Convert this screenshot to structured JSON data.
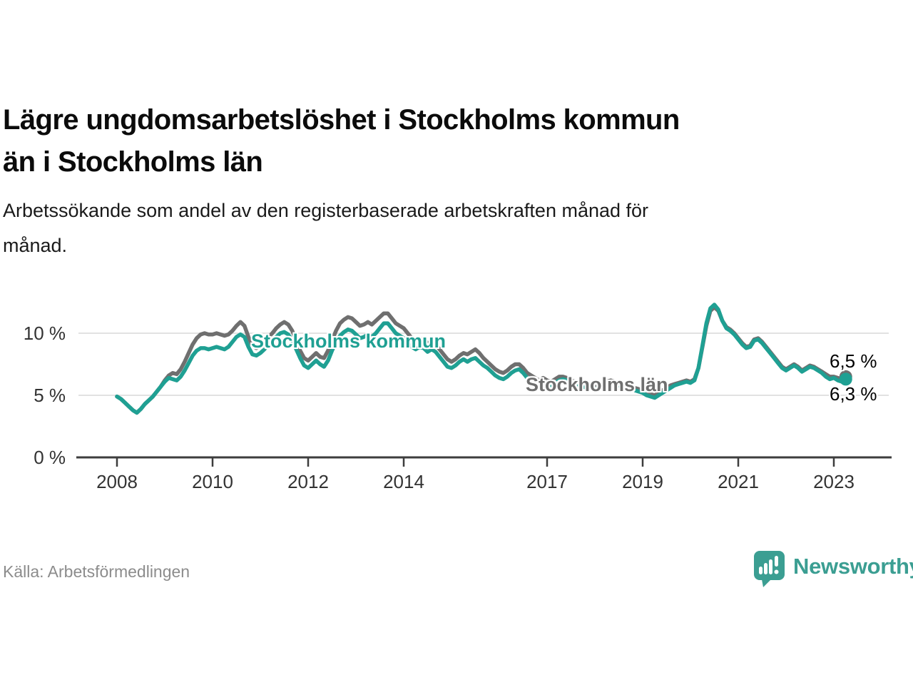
{
  "header": {
    "title": "Lägre ungdomsarbetslöshet i Stockholms kommun än i Stockholms län",
    "title_line1": "Lägre ungdomsarbetslöshet i Stockholms kommun",
    "title_line2": "än i Stockholms län",
    "subtitle_line1": "Arbetssökande som andel av den registerbaserade arbetskraften månad för",
    "subtitle_line2": "månad."
  },
  "footer": {
    "source": "Källa: Arbetsförmedlingen",
    "logo_text": "Newsworthy"
  },
  "colors": {
    "kommun": "#1FA093",
    "lan": "#6F6F6F",
    "axis_text": "#333333",
    "axis_line": "#3d3d3d",
    "gridline": "#d9d9d9",
    "logo_teal": "#3b9e92"
  },
  "chart_data": {
    "type": "line",
    "title": "Lägre ungdomsarbetslöshet i Stockholms kommun än i Stockholms län",
    "subtitle": "Arbetssökande som andel av den registerbaserade arbetskraften månad för månad.",
    "unit": "%",
    "frequency": "monthly",
    "start_year": 2008,
    "points_per_year": 12,
    "end_period": "2023-04",
    "grid": "horizontal-only",
    "legend_position": "inline-labels",
    "ylim": [
      0,
      13
    ],
    "y_ticks": [
      {
        "value": 0,
        "label": "0 %"
      },
      {
        "value": 5,
        "label": "5 %"
      },
      {
        "value": 10,
        "label": "10 %"
      }
    ],
    "x_ticks": [
      {
        "year": 2008,
        "label": "2008"
      },
      {
        "year": 2010,
        "label": "2010"
      },
      {
        "year": 2012,
        "label": "2012"
      },
      {
        "year": 2014,
        "label": "2014"
      },
      {
        "year": 2017,
        "label": "2017"
      },
      {
        "year": 2019,
        "label": "2019"
      },
      {
        "year": 2021,
        "label": "2021"
      },
      {
        "year": 2023,
        "label": "2023"
      }
    ],
    "end_label_top": "6,5 %",
    "end_label_bottom": "6,3 %",
    "series": [
      {
        "name": "Stockholms kommun",
        "color": "#1FA093",
        "end_value": 6.3,
        "end_label": "6,3 %",
        "values": [
          4.9,
          4.7,
          4.4,
          4.1,
          3.8,
          3.6,
          3.9,
          4.3,
          4.6,
          4.9,
          5.3,
          5.7,
          6.1,
          6.4,
          6.3,
          6.2,
          6.5,
          7.0,
          7.6,
          8.2,
          8.6,
          8.8,
          8.8,
          8.7,
          8.8,
          8.9,
          8.8,
          8.7,
          8.9,
          9.3,
          9.7,
          9.9,
          9.7,
          8.9,
          8.3,
          8.2,
          8.4,
          8.7,
          9.1,
          9.4,
          9.7,
          10.0,
          10.1,
          9.9,
          9.4,
          8.7,
          8.0,
          7.4,
          7.2,
          7.5,
          7.8,
          7.5,
          7.3,
          7.8,
          8.6,
          9.3,
          9.8,
          10.1,
          10.3,
          10.2,
          9.9,
          9.6,
          9.7,
          9.9,
          9.7,
          10.0,
          10.4,
          10.8,
          10.8,
          10.4,
          10.0,
          9.8,
          9.6,
          9.2,
          8.9,
          8.7,
          8.9,
          8.8,
          8.5,
          8.7,
          8.5,
          8.1,
          7.7,
          7.3,
          7.2,
          7.4,
          7.7,
          7.9,
          7.7,
          7.9,
          8.0,
          7.7,
          7.4,
          7.2,
          6.9,
          6.6,
          6.4,
          6.3,
          6.5,
          6.8,
          7.0,
          7.1,
          6.8,
          6.4,
          6.2,
          6.0,
          5.9,
          6.1,
          5.9,
          5.8,
          6.0,
          6.2,
          6.3,
          6.2,
          6.0,
          5.9,
          5.8,
          5.7,
          5.6,
          5.5,
          5.5,
          5.6,
          5.8,
          5.9,
          6.0,
          5.9,
          5.8,
          5.7,
          5.6,
          5.5,
          5.4,
          5.3,
          5.2,
          5.0,
          4.9,
          4.8,
          5.0,
          5.2,
          5.4,
          5.6,
          5.8,
          5.9,
          6.0,
          6.1,
          6.0,
          6.2,
          7.2,
          9.0,
          10.8,
          12.0,
          12.3,
          11.9,
          11.0,
          10.4,
          10.2,
          9.9,
          9.5,
          9.1,
          8.8,
          8.9,
          9.4,
          9.5,
          9.2,
          8.8,
          8.4,
          8.0,
          7.6,
          7.2,
          7.0,
          7.2,
          7.4,
          7.2,
          6.9,
          7.1,
          7.3,
          7.2,
          7.0,
          6.8,
          6.5,
          6.3,
          6.4,
          6.2,
          6.1,
          6.3
        ]
      },
      {
        "name": "Stockholms län",
        "color": "#6F6F6F",
        "end_value": 6.5,
        "end_label": "6,5 %",
        "values": [
          4.9,
          4.7,
          4.4,
          4.1,
          3.8,
          3.6,
          3.9,
          4.3,
          4.6,
          4.9,
          5.3,
          5.7,
          6.2,
          6.6,
          6.8,
          6.7,
          7.1,
          7.7,
          8.4,
          9.1,
          9.6,
          9.9,
          10.0,
          9.9,
          9.9,
          10.0,
          9.9,
          9.8,
          9.9,
          10.2,
          10.6,
          10.9,
          10.6,
          9.7,
          9.0,
          8.8,
          9.0,
          9.3,
          9.7,
          10.0,
          10.4,
          10.7,
          10.9,
          10.7,
          10.2,
          9.4,
          8.6,
          8.0,
          7.8,
          8.1,
          8.4,
          8.1,
          8.0,
          8.6,
          9.4,
          10.2,
          10.8,
          11.1,
          11.3,
          11.2,
          10.9,
          10.6,
          10.7,
          10.9,
          10.7,
          11.0,
          11.3,
          11.6,
          11.6,
          11.2,
          10.8,
          10.6,
          10.4,
          10.0,
          9.6,
          9.4,
          9.6,
          9.5,
          9.2,
          9.3,
          9.1,
          8.7,
          8.3,
          7.9,
          7.7,
          7.9,
          8.2,
          8.4,
          8.3,
          8.5,
          8.7,
          8.4,
          8.0,
          7.7,
          7.4,
          7.1,
          6.9,
          6.8,
          7.0,
          7.3,
          7.5,
          7.5,
          7.2,
          6.8,
          6.6,
          6.4,
          6.2,
          6.4,
          6.2,
          6.1,
          6.3,
          6.5,
          6.5,
          6.4,
          6.2,
          6.1,
          6.0,
          5.9,
          5.8,
          5.7,
          5.7,
          5.8,
          6.0,
          6.1,
          6.2,
          6.1,
          6.0,
          5.9,
          5.8,
          5.7,
          5.6,
          5.5,
          5.4,
          5.2,
          5.1,
          5.0,
          5.2,
          5.4,
          5.6,
          5.8,
          5.9,
          6.0,
          6.1,
          6.2,
          6.1,
          6.3,
          7.2,
          8.9,
          10.6,
          11.8,
          12.1,
          11.8,
          11.0,
          10.5,
          10.3,
          10.0,
          9.6,
          9.2,
          8.9,
          9.0,
          9.5,
          9.6,
          9.3,
          8.9,
          8.5,
          8.1,
          7.7,
          7.3,
          7.1,
          7.3,
          7.5,
          7.3,
          7.0,
          7.2,
          7.4,
          7.3,
          7.1,
          6.9,
          6.7,
          6.5,
          6.5,
          6.4,
          6.3,
          6.5
        ]
      }
    ]
  }
}
